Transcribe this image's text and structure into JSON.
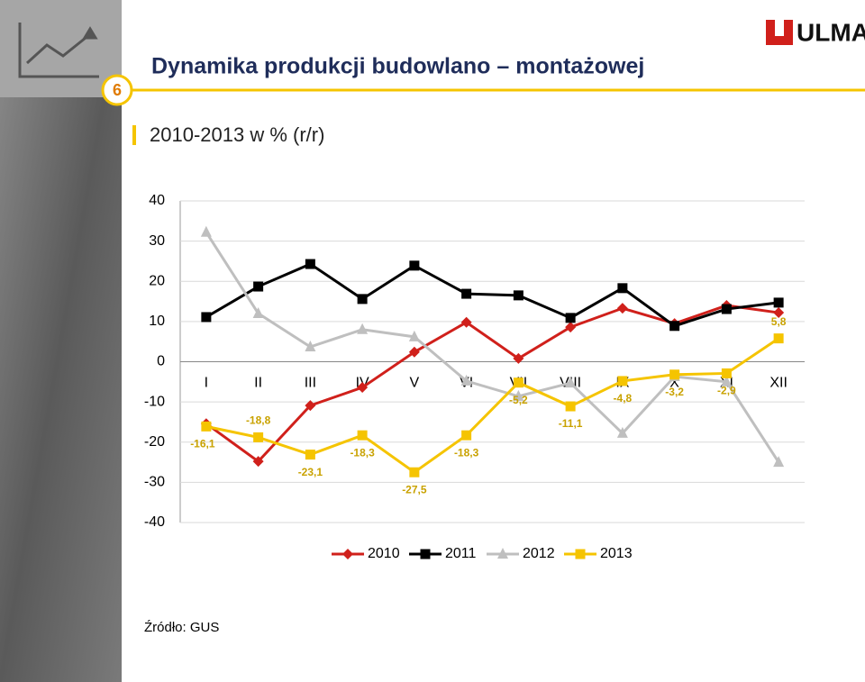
{
  "slide_number": "6",
  "logo": "ULMA",
  "chart_data": {
    "type": "line",
    "title": "Dynamika produkcji budowlano – montażowej",
    "subtitle": "2010-2013  w % (r/r)",
    "source": "Źródło: GUS",
    "categories": [
      "I",
      "II",
      "III",
      "IV",
      "V",
      "VI",
      "VII",
      "VIII",
      "IX",
      "X",
      "XI",
      "XII"
    ],
    "ylim": [
      -40,
      40
    ],
    "yticks": [
      -40,
      -30,
      -20,
      -10,
      0,
      10,
      20,
      30,
      40
    ],
    "grid": true,
    "series": [
      {
        "name": "2010",
        "color": "#d0201b",
        "marker": "diamond",
        "values": [
          -15.4,
          -24.8,
          -10.9,
          -6.4,
          2.4,
          9.8,
          0.8,
          8.6,
          13.3,
          9.5,
          14.0,
          12.2
        ]
      },
      {
        "name": "2011",
        "color": "#000000",
        "marker": "square",
        "values": [
          11.1,
          18.7,
          24.3,
          15.6,
          23.9,
          16.9,
          16.5,
          10.9,
          18.3,
          8.9,
          13.1,
          14.7
        ]
      },
      {
        "name": "2012",
        "color": "#bfbfbf",
        "marker": "triangle",
        "values": [
          32.2,
          12.0,
          3.7,
          8.0,
          6.2,
          -4.8,
          -8.6,
          -5.3,
          -17.8,
          -3.7,
          -5.0,
          -25.0
        ]
      },
      {
        "name": "2013",
        "color": "#f5c400",
        "marker": "square",
        "values": [
          -16.1,
          -18.8,
          -23.1,
          -18.3,
          -27.5,
          -18.3,
          -5.2,
          -11.1,
          -4.8,
          -3.2,
          -2.9,
          5.8
        ],
        "value_labels": [
          "-16,1",
          "-18,8",
          "-23,1",
          "-18,3",
          "-27,5",
          "-18,3",
          "-5,2",
          "-11,1",
          "-4,8",
          "-3,2",
          "-2,9",
          "5,8"
        ]
      }
    ]
  }
}
